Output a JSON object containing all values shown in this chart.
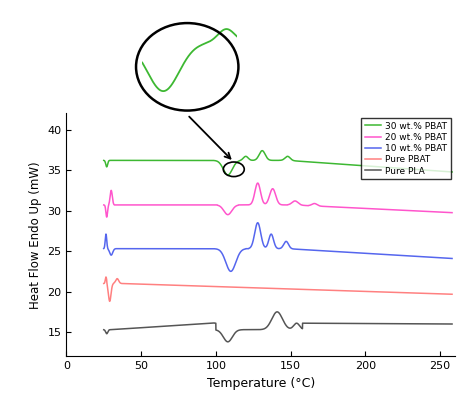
{
  "xlabel": "Temperature (°C)",
  "ylabel": "Heat Flow Endo Up (mW)",
  "xlim": [
    0,
    260
  ],
  "ylim": [
    12,
    42
  ],
  "yticks": [
    15,
    20,
    25,
    30,
    35,
    40
  ],
  "xticks": [
    0,
    50,
    100,
    150,
    200,
    250
  ],
  "colors": {
    "green": "#3db832",
    "pink": "#ff55cc",
    "blue": "#5566ee",
    "salmon": "#ff8080",
    "gray": "#555555"
  },
  "legend_labels": [
    "30 wt.% PBAT",
    "20 wt.% PBAT",
    "10 wt.% PBAT",
    "Pure PBAT",
    "Pure PLA"
  ],
  "legend_colors": [
    "#3db832",
    "#ff55cc",
    "#5566ee",
    "#ff8080",
    "#555555"
  ],
  "figsize": [
    4.74,
    4.05
  ],
  "dpi": 100
}
